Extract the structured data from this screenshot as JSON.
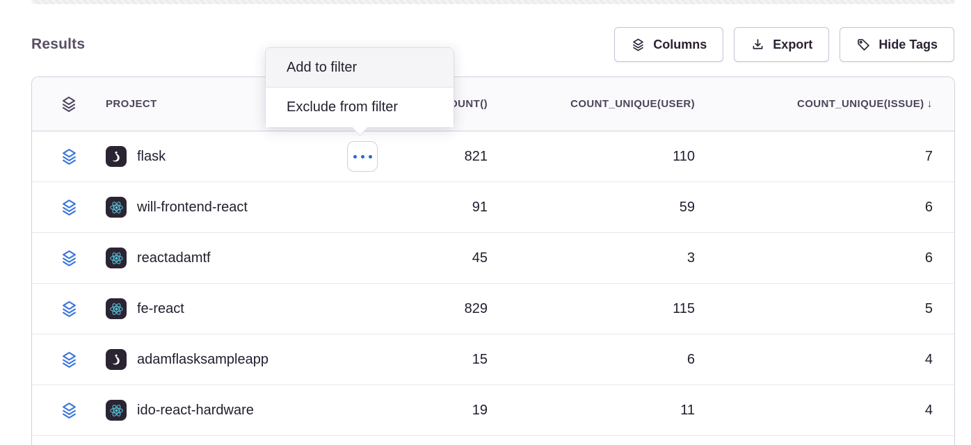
{
  "page": {
    "title": "Results"
  },
  "toolbar": {
    "columns_label": "Columns",
    "export_label": "Export",
    "hide_tags_label": "Hide Tags"
  },
  "menu": {
    "items": [
      {
        "label": "Add to filter",
        "state": "hovered"
      },
      {
        "label": "Exclude from filter",
        "state": "normal"
      }
    ]
  },
  "table": {
    "columns": {
      "project": "PROJECT",
      "count": "COUNT()",
      "count_unique_user": "COUNT_UNIQUE(USER)",
      "count_unique_issue": "COUNT_UNIQUE(ISSUE)"
    },
    "sort": {
      "column": "count_unique_issue",
      "direction": "desc",
      "glyph": "↓"
    },
    "rows": [
      {
        "project": "flask",
        "platform": "flask",
        "count": "821",
        "count_unique_user": "110",
        "count_unique_issue": "7",
        "has_menu_button": true
      },
      {
        "project": "will-frontend-react",
        "platform": "react",
        "count": "91",
        "count_unique_user": "59",
        "count_unique_issue": "6"
      },
      {
        "project": "reactadamtf",
        "platform": "react",
        "count": "45",
        "count_unique_user": "3",
        "count_unique_issue": "6"
      },
      {
        "project": "fe-react",
        "platform": "react",
        "count": "829",
        "count_unique_user": "115",
        "count_unique_issue": "5"
      },
      {
        "project": "adamflasksampleapp",
        "platform": "flask",
        "count": "15",
        "count_unique_user": "6",
        "count_unique_issue": "4"
      },
      {
        "project": "ido-react-hardware",
        "platform": "react",
        "count": "19",
        "count_unique_user": "11",
        "count_unique_issue": "4"
      }
    ]
  },
  "icons": {
    "columns_button": "layers-icon",
    "export_button": "download-icon",
    "hide_tags_button": "tag-icon",
    "header_first_column": "layers-icon",
    "row_first_column": "layers-icon",
    "row_action": "ellipsis-icon",
    "platforms": [
      "flask-icon",
      "react-icon"
    ]
  },
  "colors": {
    "accent_blue": "#3a75dc",
    "ellipsis_dot_blue": "#2c66d8",
    "react_cyan": "#58c5dc",
    "platform_tile_bg": "#2b2533",
    "text_primary": "#221c2c",
    "heading_text": "#574f63",
    "header_text": "#4c445a",
    "table_border": "#d6cfde",
    "row_separator": "#eae5ef",
    "header_bg": "#faf9fb",
    "menu_hover_bg": "#f5f4f7"
  }
}
